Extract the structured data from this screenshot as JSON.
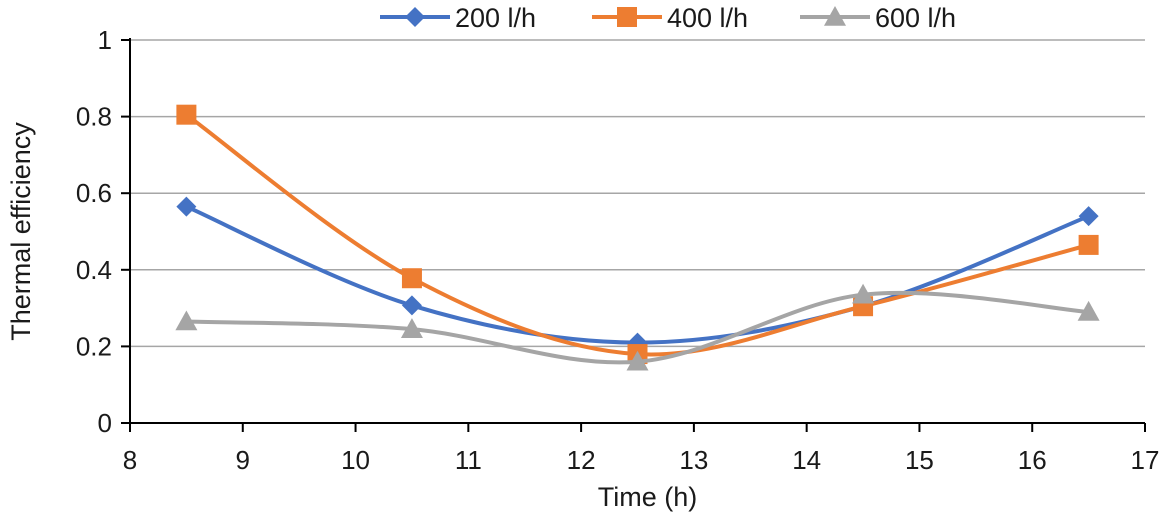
{
  "chart_data": {
    "type": "line",
    "title": "",
    "xlabel": "Time (h)",
    "ylabel": "Thermal efficiency",
    "xlim": [
      8,
      17
    ],
    "ylim": [
      0,
      1
    ],
    "x_ticks": [
      8,
      9,
      10,
      11,
      12,
      13,
      14,
      15,
      16,
      17
    ],
    "y_ticks": [
      0,
      0.2,
      0.4,
      0.6,
      0.8,
      1
    ],
    "y_tick_labels": [
      "0",
      "0.2",
      "0.4",
      "0.6",
      "0.8",
      "1"
    ],
    "grid": "horizontal",
    "legend_position": "top",
    "smooth": true,
    "series": [
      {
        "name": "200 l/h",
        "color": "#4472c4",
        "marker": "diamond",
        "x": [
          8.5,
          10.5,
          12.5,
          14.5,
          16.5
        ],
        "values": [
          0.565,
          0.307,
          0.21,
          0.305,
          0.54
        ]
      },
      {
        "name": "400 l/h",
        "color": "#ed7d31",
        "marker": "square",
        "x": [
          8.5,
          10.5,
          12.5,
          14.5,
          16.5
        ],
        "values": [
          0.805,
          0.378,
          0.18,
          0.305,
          0.465
        ]
      },
      {
        "name": "600 l/h",
        "color": "#a5a5a5",
        "marker": "triangle",
        "x": [
          8.5,
          10.5,
          12.5,
          14.5,
          16.5
        ],
        "values": [
          0.265,
          0.245,
          0.16,
          0.335,
          0.29
        ]
      }
    ]
  }
}
